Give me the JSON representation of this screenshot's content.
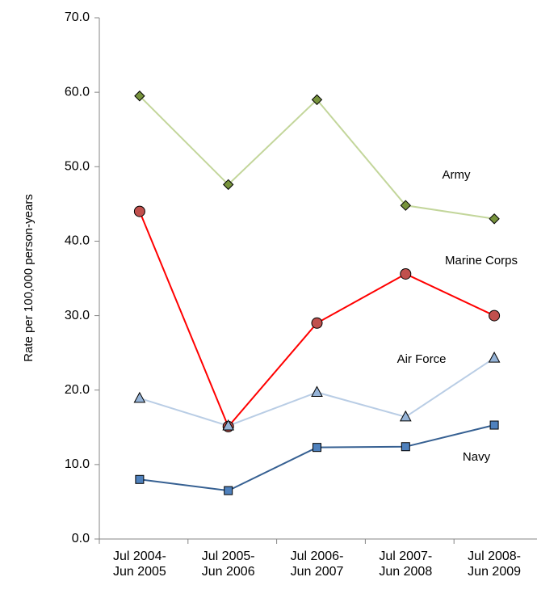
{
  "chart_data": {
    "type": "line",
    "y_label": "Rate per 100,000 person-years",
    "categories": [
      "Jul 2004-Jun 2005",
      "Jul 2005-Jun 2006",
      "Jul 2006-Jun 2007",
      "Jul 2007-Jun 2008",
      "Jul 2008-Jun 2009"
    ],
    "series": [
      {
        "name": "Army",
        "color": "#c3d69b",
        "marker": "diamond",
        "marker_color": "#77933c",
        "values": [
          59.5,
          47.6,
          59.0,
          44.8,
          43.0
        ]
      },
      {
        "name": "Marine Corps",
        "color": "#ff0000",
        "marker": "circle",
        "marker_color": "#c0504d",
        "values": [
          44.0,
          15.1,
          29.0,
          35.6,
          30.0
        ]
      },
      {
        "name": "Air Force",
        "color": "#b9cde5",
        "marker": "triangle",
        "marker_color": "#95b3d7",
        "values": [
          18.9,
          15.2,
          19.7,
          16.4,
          24.3
        ]
      },
      {
        "name": "Navy",
        "color": "#366092",
        "marker": "square",
        "marker_color": "#4f81bd",
        "values": [
          8.0,
          6.5,
          12.3,
          12.4,
          15.3
        ]
      }
    ],
    "ylim": [
      0,
      70
    ],
    "yticks": [
      {
        "value": 0,
        "label": "0.0"
      },
      {
        "value": 10,
        "label": "10.0"
      },
      {
        "value": 20,
        "label": "20.0"
      },
      {
        "value": 30,
        "label": "30.0"
      },
      {
        "value": 40,
        "label": "40.0"
      },
      {
        "value": 50,
        "label": "50.0"
      },
      {
        "value": 60,
        "label": "60.0"
      },
      {
        "value": 70,
        "label": "70.0"
      }
    ]
  }
}
